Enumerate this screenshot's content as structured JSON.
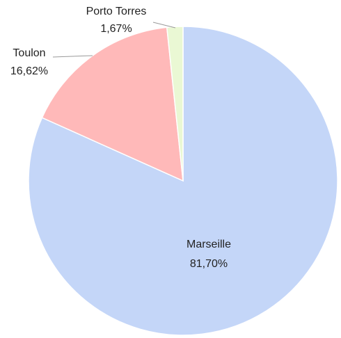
{
  "chart_data": {
    "type": "pie",
    "categories": [
      "Marseille",
      "Toulon",
      "Porto Torres"
    ],
    "values": [
      81.7,
      16.62,
      1.67
    ],
    "value_labels": [
      "81,70%",
      "16,62%",
      "1,67%"
    ],
    "colors": [
      "#c4d6f8",
      "#ffb9b9",
      "#eaf8d4"
    ]
  }
}
